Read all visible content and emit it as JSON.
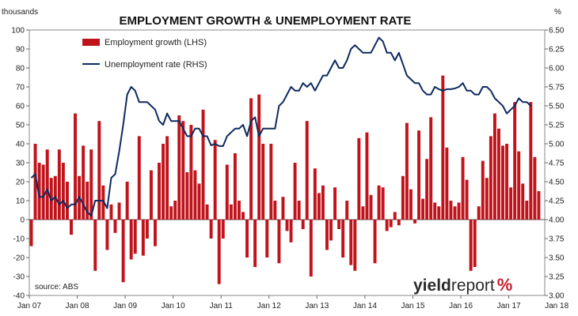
{
  "chart_data": {
    "type": "bar+line",
    "title": "EMPLOYMENT GROWTH & UNEMPLOYMENT RATE",
    "left_axis_unit": "thousands",
    "right_axis_unit": "%",
    "source": "source: ABS",
    "logo": "yieldreport %",
    "legend": [
      "Employment growth (LHS)",
      "Unemployment rate (RHS)"
    ],
    "x_tick_labels": [
      "Jan 07",
      "Jan 08",
      "Jan 09",
      "Jan 10",
      "Jan 11",
      "Jan 12",
      "Jan 13",
      "Jan 14",
      "Jan 15",
      "Jan 16",
      "Jan 17",
      "Jan 18"
    ],
    "left_ylim": [
      -40,
      100
    ],
    "left_ticks": [
      -40,
      -30,
      -20,
      -10,
      0,
      10,
      20,
      30,
      40,
      50,
      60,
      70,
      80,
      90,
      100
    ],
    "right_ylim": [
      3.0,
      6.5
    ],
    "right_ticks": [
      "3.00",
      "3.25",
      "3.50",
      "3.75",
      "4.00",
      "4.25",
      "4.50",
      "4.75",
      "5.00",
      "5.25",
      "5.50",
      "5.75",
      "6.00",
      "6.25",
      "6.50"
    ],
    "colors": {
      "bars": "#c0141c",
      "line": "#0e2a5e"
    },
    "months_start": "2007-01",
    "series": [
      {
        "name": "Employment growth (LHS)",
        "kind": "bar",
        "values": [
          -14,
          40,
          30,
          29,
          37,
          22,
          23,
          37,
          30,
          20,
          -8,
          56,
          23,
          39,
          20,
          37,
          -27,
          52,
          18,
          -16,
          8,
          -7,
          9,
          -33,
          20,
          -21,
          -18,
          44,
          -19,
          -10,
          26,
          -14,
          30,
          40,
          44,
          7,
          10,
          55,
          52,
          25,
          50,
          26,
          19,
          58,
          8,
          -10,
          42,
          -34,
          -10,
          29,
          8,
          35,
          10,
          4,
          -20,
          64,
          -25,
          66,
          40,
          -20,
          40,
          10,
          -23,
          12,
          -6,
          -12,
          30,
          10,
          -5,
          52,
          -30,
          27,
          14,
          18,
          -16,
          -11,
          17,
          -5,
          -20,
          10,
          -24,
          -27,
          43,
          7,
          46,
          13,
          -23,
          18,
          17,
          -6,
          -4,
          4,
          -3,
          23,
          51,
          16,
          -2,
          47,
          11,
          32,
          54,
          9,
          7,
          76,
          38,
          10,
          7,
          9,
          33,
          21,
          -27,
          -25,
          7,
          31,
          22,
          44,
          56,
          48,
          39,
          40,
          17,
          62,
          36,
          19,
          10,
          62,
          33,
          15
        ]
      },
      {
        "name": "Unemployment rate (RHS)",
        "kind": "line",
        "values": [
          4.55,
          4.6,
          4.3,
          4.3,
          4.4,
          4.25,
          4.3,
          4.2,
          4.25,
          4.15,
          4.2,
          4.2,
          4.3,
          4.2,
          4.1,
          4.05,
          4.25,
          4.25,
          4.25,
          4.15,
          4.55,
          4.6,
          4.9,
          5.25,
          5.65,
          5.75,
          5.7,
          5.55,
          5.55,
          5.55,
          5.5,
          5.45,
          5.3,
          5.25,
          5.4,
          5.3,
          5.3,
          5.3,
          5.2,
          5.1,
          5.1,
          5.2,
          5.2,
          5.1,
          5.1,
          4.98,
          5.0,
          4.97,
          4.97,
          5.1,
          5.15,
          5.2,
          5.2,
          5.25,
          5.1,
          5.3,
          5.35,
          5.1,
          5.2,
          5.2,
          5.2,
          5.2,
          5.5,
          5.55,
          5.65,
          5.75,
          5.7,
          5.7,
          5.8,
          5.75,
          5.8,
          5.7,
          5.8,
          5.9,
          5.9,
          6.0,
          6.1,
          6.0,
          6.0,
          6.1,
          6.25,
          6.3,
          6.25,
          6.2,
          6.2,
          6.2,
          6.3,
          6.4,
          6.35,
          6.2,
          6.2,
          6.1,
          6.2,
          6.05,
          5.9,
          5.85,
          5.8,
          5.8,
          5.7,
          5.65,
          5.65,
          5.75,
          5.72,
          5.7,
          5.72,
          5.72,
          5.73,
          5.75,
          5.8,
          5.7,
          5.7,
          5.65,
          5.65,
          5.75,
          5.75,
          5.7,
          5.6,
          5.55,
          5.5,
          5.4,
          5.45,
          5.5,
          5.6,
          5.55,
          5.55,
          5.5
        ]
      }
    ]
  }
}
